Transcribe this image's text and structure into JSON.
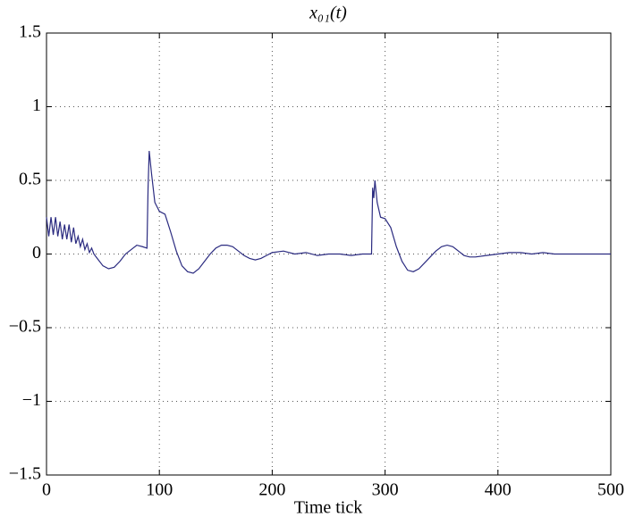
{
  "chart_data": {
    "type": "line",
    "title": "x₀₁(t)",
    "x_label": "Time tick",
    "x": [
      0,
      2,
      4,
      6,
      8,
      10,
      12,
      14,
      16,
      18,
      20,
      22,
      24,
      26,
      28,
      30,
      32,
      34,
      36,
      38,
      40,
      42,
      45,
      50,
      55,
      60,
      65,
      70,
      75,
      80,
      85,
      89,
      90,
      91,
      93,
      96,
      100,
      105,
      110,
      115,
      120,
      125,
      130,
      135,
      140,
      145,
      150,
      155,
      160,
      165,
      170,
      175,
      180,
      185,
      190,
      195,
      200,
      210,
      220,
      230,
      240,
      250,
      260,
      270,
      280,
      288,
      289,
      290,
      291,
      293,
      296,
      300,
      305,
      310,
      315,
      320,
      325,
      330,
      335,
      340,
      345,
      350,
      355,
      360,
      365,
      370,
      375,
      380,
      390,
      400,
      410,
      420,
      430,
      440,
      450,
      460,
      470,
      480,
      490,
      500
    ],
    "series": [
      {
        "name": "x01",
        "color": "#2b2b80",
        "values": [
          0.25,
          0.12,
          0.25,
          0.13,
          0.25,
          0.12,
          0.22,
          0.1,
          0.2,
          0.1,
          0.2,
          0.08,
          0.18,
          0.07,
          0.12,
          0.05,
          0.1,
          0.03,
          0.07,
          0.01,
          0.04,
          0.0,
          -0.03,
          -0.08,
          -0.1,
          -0.09,
          -0.05,
          0.0,
          0.03,
          0.06,
          0.05,
          0.04,
          0.45,
          0.7,
          0.55,
          0.35,
          0.29,
          0.27,
          0.15,
          0.02,
          -0.08,
          -0.12,
          -0.13,
          -0.1,
          -0.05,
          0.0,
          0.04,
          0.06,
          0.06,
          0.05,
          0.02,
          -0.01,
          -0.03,
          -0.04,
          -0.03,
          -0.01,
          0.01,
          0.02,
          0.0,
          0.01,
          -0.01,
          0.0,
          0.0,
          -0.01,
          0.0,
          0.0,
          0.45,
          0.38,
          0.5,
          0.35,
          0.25,
          0.24,
          0.18,
          0.05,
          -0.05,
          -0.11,
          -0.12,
          -0.1,
          -0.06,
          -0.02,
          0.02,
          0.05,
          0.06,
          0.05,
          0.02,
          -0.01,
          -0.02,
          -0.02,
          -0.01,
          0.0,
          0.01,
          0.01,
          0.0,
          0.01,
          0.0,
          0.0,
          0.0,
          0.0,
          0.0,
          0.0
        ]
      }
    ],
    "xlim": [
      0,
      500
    ],
    "xticks": [
      0,
      100,
      200,
      300,
      400,
      500
    ],
    "ylim": [
      -1.5,
      1.5
    ],
    "yticks": [
      {
        "value": -1.5,
        "label": "−1.5"
      },
      {
        "value": -1,
        "label": "−1"
      },
      {
        "value": -0.5,
        "label": "−0.5"
      },
      0,
      0.5,
      1,
      1.5
    ],
    "grid": true
  }
}
